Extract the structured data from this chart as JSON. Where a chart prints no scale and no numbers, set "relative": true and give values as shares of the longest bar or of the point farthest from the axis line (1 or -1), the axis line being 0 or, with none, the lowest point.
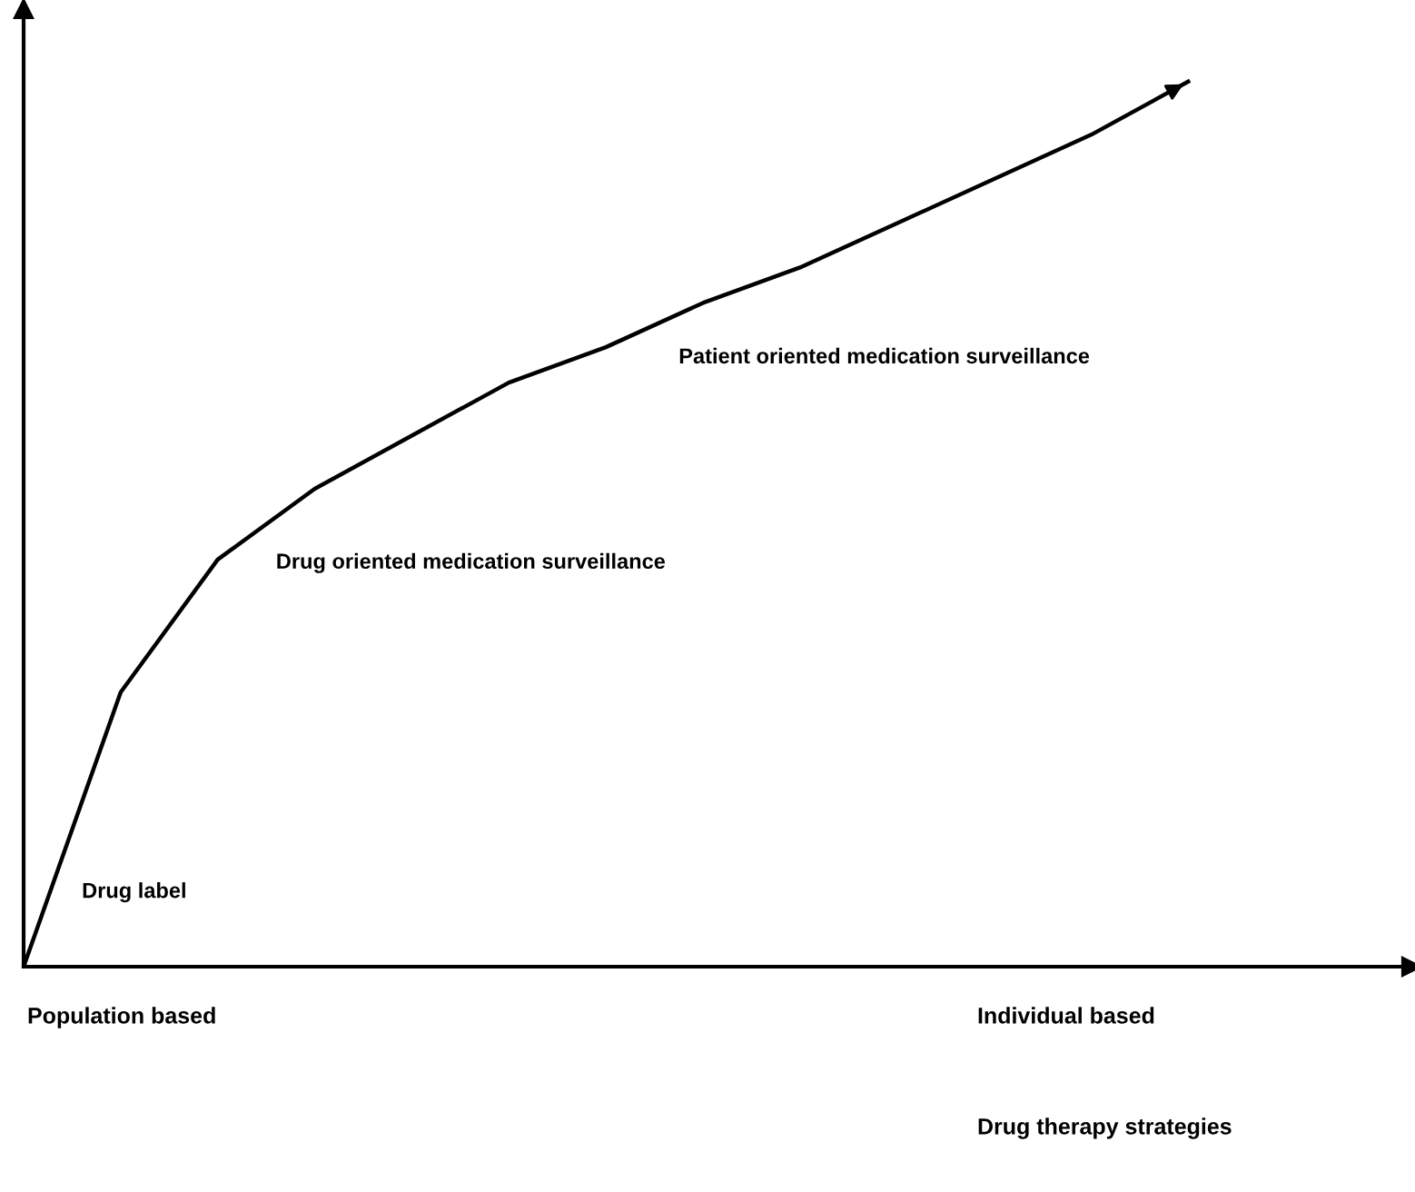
{
  "chart_data": {
    "type": "line",
    "relative": true,
    "categories": [
      null,
      null,
      null,
      null,
      null,
      null,
      null,
      null,
      null,
      null,
      null,
      null,
      null
    ],
    "series": [
      {
        "color": "#000000",
        "values": [
          0,
          0.31,
          0.46,
          0.54,
          0.6,
          0.66,
          0.7,
          0.75,
          0.79,
          0.84,
          0.89,
          0.94,
          1
        ]
      }
    ],
    "annotations": [
      "Drug label",
      "Drug oriented medication surveillance",
      "Patient oriented medication surveillance",
      "Population based",
      "Individual based",
      "Drug therapy strategies"
    ],
    "marker": "none",
    "line_style": "solid",
    "grid": false
  }
}
